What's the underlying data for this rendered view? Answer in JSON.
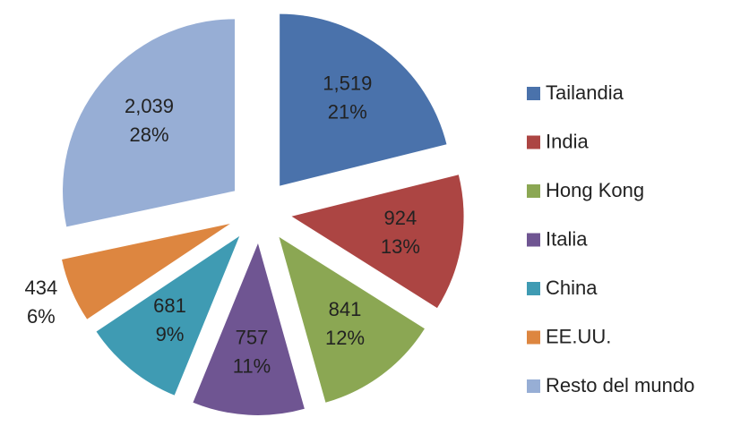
{
  "chart_data": {
    "type": "pie",
    "categories": [
      "Tailandia",
      "India",
      "Hong Kong",
      "Italia",
      "China",
      "EE.UU.",
      "Resto del mundo"
    ],
    "values": [
      1519,
      924,
      841,
      757,
      681,
      434,
      2039
    ],
    "value_labels": [
      "1,519",
      "924",
      "841",
      "757",
      "681",
      "434",
      "2,039"
    ],
    "percent_labels": [
      "21%",
      "13%",
      "12%",
      "11%",
      "9%",
      "6%",
      "28%"
    ],
    "colors": [
      "#4a72ab",
      "#ac4543",
      "#8ba753",
      "#6f5592",
      "#3f9bb3",
      "#dd8640",
      "#97aed5"
    ],
    "exploded": true,
    "legend": "right"
  }
}
